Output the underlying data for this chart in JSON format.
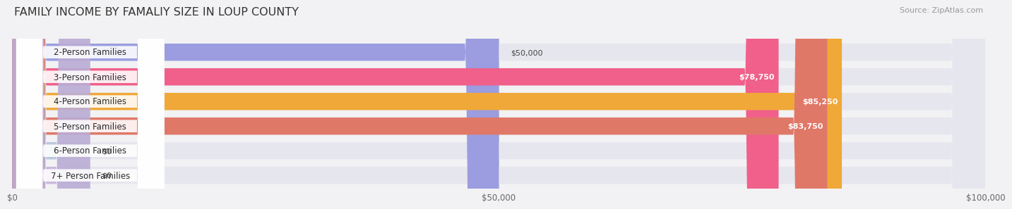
{
  "title": "FAMILY INCOME BY FAMALIY SIZE IN LOUP COUNTY",
  "source": "Source: ZipAtlas.com",
  "categories": [
    "2-Person Families",
    "3-Person Families",
    "4-Person Families",
    "5-Person Families",
    "6-Person Families",
    "7+ Person Families"
  ],
  "values": [
    50000,
    78750,
    85250,
    83750,
    0,
    0
  ],
  "bar_colors": [
    "#9b9de0",
    "#f0608a",
    "#f0a838",
    "#e07868",
    "#a8bcd8",
    "#c0a8d4"
  ],
  "max_value": 100000,
  "xlim": [
    0,
    100000
  ],
  "xtick_values": [
    0,
    50000,
    100000
  ],
  "xticklabels": [
    "$0",
    "$50,000",
    "$100,000"
  ],
  "bg_color": "#f2f2f4",
  "bar_bg_color": "#e6e6ee",
  "bar_bg_color_inner": "#ebebf2",
  "title_fontsize": 11.5,
  "label_fontsize": 8.5,
  "value_fontsize": 8,
  "source_fontsize": 8,
  "value_outside_threshold": 60000,
  "small_bar_value": 8000
}
